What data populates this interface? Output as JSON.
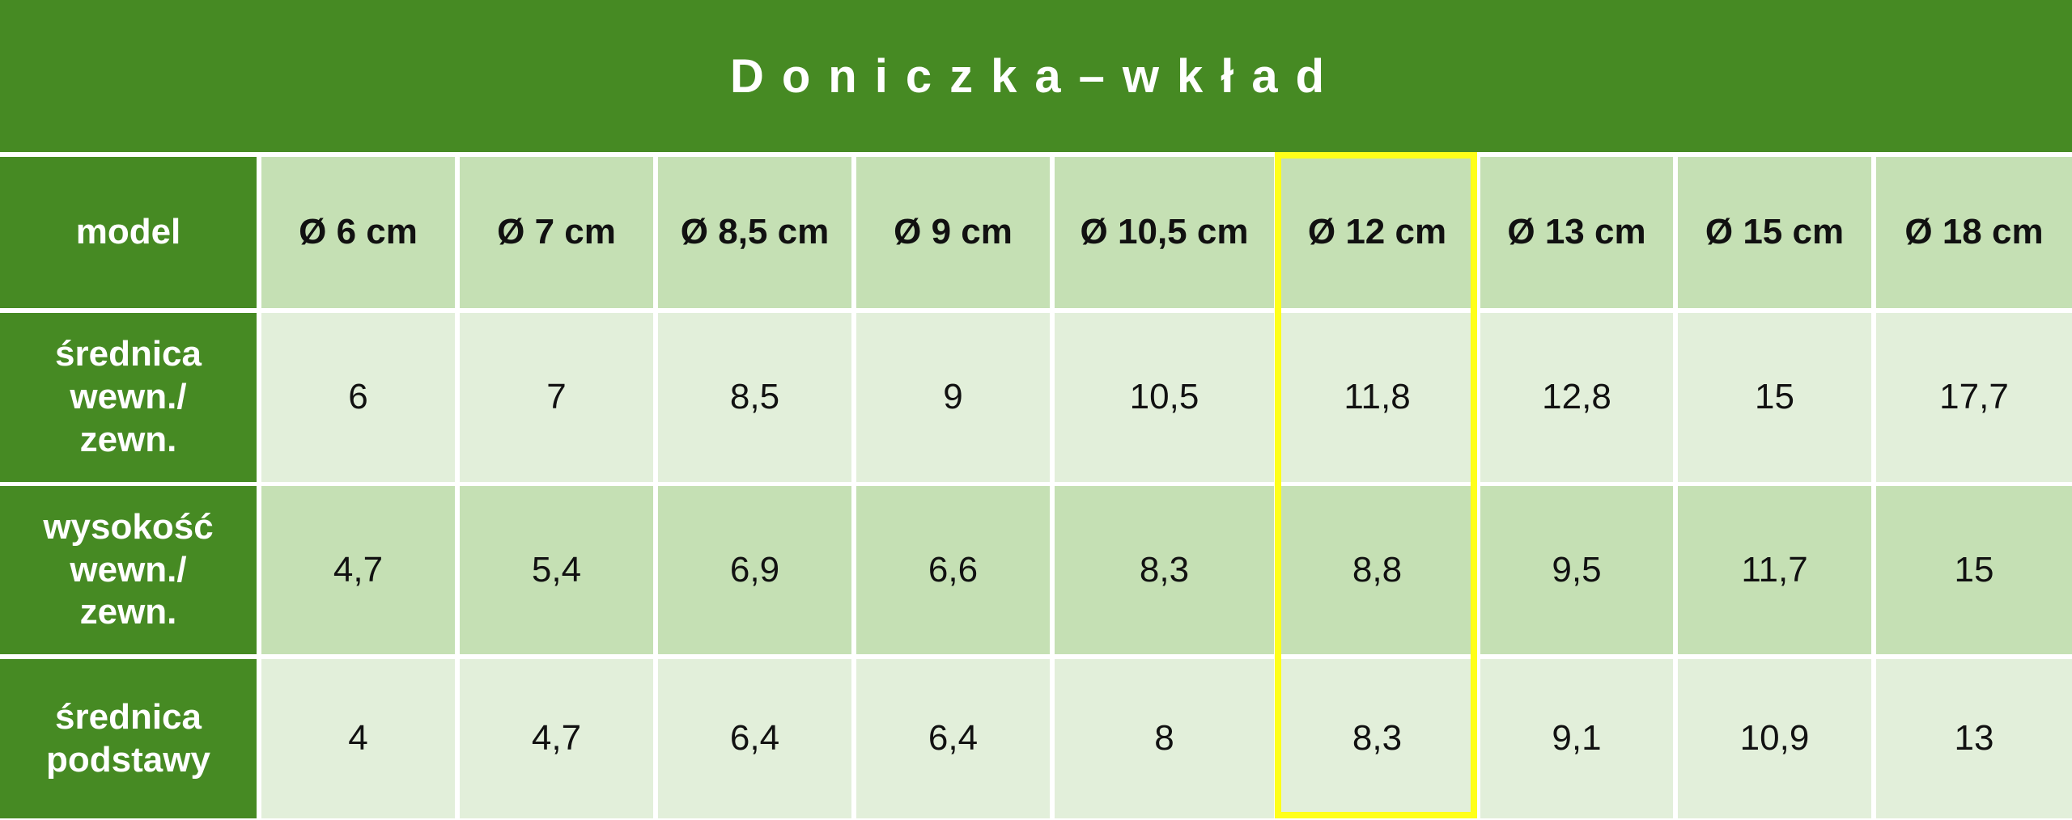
{
  "title": "Doniczka–wkład",
  "table": {
    "header": [
      "model",
      "Ø 6 cm",
      "Ø 7 cm",
      "Ø 8,5 cm",
      "Ø 9 cm",
      "Ø 10,5 cm",
      "Ø 12 cm",
      "Ø 13 cm",
      "Ø 15 cm",
      "Ø 18 cm"
    ],
    "rows": [
      {
        "label": [
          "średnica",
          "wewn./",
          "zewn."
        ],
        "values": [
          "6",
          "7",
          "8,5",
          "9",
          "10,5",
          "11,8",
          "12,8",
          "15",
          "17,7"
        ]
      },
      {
        "label": [
          "wysokość",
          "wewn./",
          "zewn."
        ],
        "values": [
          "4,7",
          "5,4",
          "6,9",
          "6,6",
          "8,3",
          "8,8",
          "9,5",
          "11,7",
          "15"
        ]
      },
      {
        "label": [
          "średnica",
          "podstawy"
        ],
        "values": [
          "4",
          "4,7",
          "6,4",
          "6,4",
          "8",
          "8,3",
          "9,1",
          "10,9",
          "13"
        ]
      }
    ]
  }
}
